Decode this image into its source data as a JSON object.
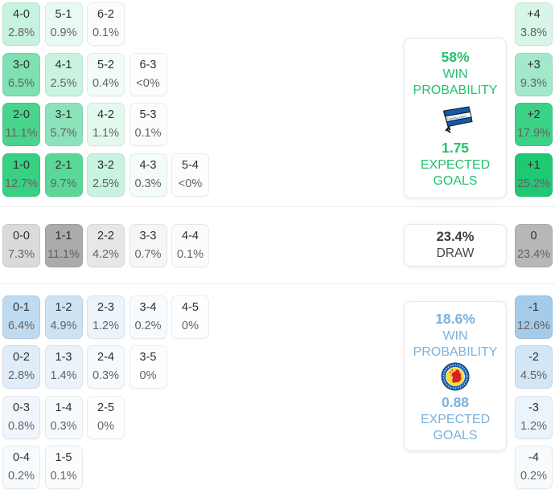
{
  "colors": {
    "home_accent": "#25c16d",
    "away_accent": "#7cb2d8",
    "draw_text": "#454545",
    "hertha_blue": "#0f5cab",
    "braunschweig_blue": "#1d63ad",
    "braunschweig_yellow": "#f8d832",
    "braunschweig_red": "#d42027"
  },
  "sections": {
    "home": {
      "panel": {
        "win_pct": "58%",
        "win_label": "WIN PROBABILITY",
        "team": "Hertha BSC",
        "xg": "1.75",
        "xg_label": "EXPECTED GOALS"
      },
      "rows": [
        [
          {
            "score": "4-0",
            "pct": "2.8%",
            "bg": "#c6f2e0"
          },
          {
            "score": "5-1",
            "pct": "0.9%",
            "bg": "#e9faf2"
          },
          {
            "score": "6-2",
            "pct": "0.1%",
            "bg": "#fafdfc"
          }
        ],
        [
          {
            "score": "3-0",
            "pct": "6.5%",
            "bg": "#7fe0b2"
          },
          {
            "score": "4-1",
            "pct": "2.5%",
            "bg": "#c9f3e1"
          },
          {
            "score": "5-2",
            "pct": "0.4%",
            "bg": "#f2fcf7"
          },
          {
            "score": "6-3",
            "pct": "<0%",
            "bg": "#fcfefd"
          }
        ],
        [
          {
            "score": "2-0",
            "pct": "11.1%",
            "bg": "#49d48e"
          },
          {
            "score": "3-1",
            "pct": "5.7%",
            "bg": "#8be3ba"
          },
          {
            "score": "4-2",
            "pct": "1.1%",
            "bg": "#e4f9ee"
          },
          {
            "score": "5-3",
            "pct": "0.1%",
            "bg": "#fafdfc"
          }
        ],
        [
          {
            "score": "1-0",
            "pct": "12.7%",
            "bg": "#38d083"
          },
          {
            "score": "2-1",
            "pct": "9.7%",
            "bg": "#5bd898"
          },
          {
            "score": "3-2",
            "pct": "2.5%",
            "bg": "#c9f3e1"
          },
          {
            "score": "4-3",
            "pct": "0.3%",
            "bg": "#f4fcf8"
          },
          {
            "score": "5-4",
            "pct": "<0%",
            "bg": "#fcfefd"
          }
        ]
      ],
      "diff": [
        {
          "score": "+4",
          "pct": "3.8%",
          "bg": "#d7f6e8"
        },
        {
          "score": "+3",
          "pct": "9.3%",
          "bg": "#a2e8cb"
        },
        {
          "score": "+2",
          "pct": "17.9%",
          "bg": "#3bd286"
        },
        {
          "score": "+1",
          "pct": "25.2%",
          "bg": "#1fc873"
        }
      ]
    },
    "draw": {
      "panel": {
        "pct": "23.4%",
        "label": "DRAW"
      },
      "rows": [
        [
          {
            "score": "0-0",
            "pct": "7.3%",
            "bg": "#dadada"
          },
          {
            "score": "1-1",
            "pct": "11.1%",
            "bg": "#ababab"
          },
          {
            "score": "2-2",
            "pct": "4.2%",
            "bg": "#e7e7e7"
          },
          {
            "score": "3-3",
            "pct": "0.7%",
            "bg": "#f6f6f6"
          },
          {
            "score": "4-4",
            "pct": "0.1%",
            "bg": "#fbfbfb"
          }
        ]
      ],
      "diff": [
        {
          "score": "0",
          "pct": "23.4%",
          "bg": "#b7b7b7"
        }
      ]
    },
    "away": {
      "panel": {
        "win_pct": "18.6%",
        "win_label": "WIN PROBABILITY",
        "team": "Eintracht Braunschweig",
        "xg": "0.88",
        "xg_label": "EXPECTED GOALS"
      },
      "rows": [
        [
          {
            "score": "0-1",
            "pct": "6.4%",
            "bg": "#bedbf1"
          },
          {
            "score": "1-2",
            "pct": "4.9%",
            "bg": "#cde3f4"
          },
          {
            "score": "2-3",
            "pct": "1.2%",
            "bg": "#ecf4fb"
          },
          {
            "score": "3-4",
            "pct": "0.2%",
            "bg": "#f8fbfe"
          },
          {
            "score": "4-5",
            "pct": "0%",
            "bg": "#fdfeff"
          }
        ],
        [
          {
            "score": "0-2",
            "pct": "2.8%",
            "bg": "#e0edf8"
          },
          {
            "score": "1-3",
            "pct": "1.4%",
            "bg": "#eaf3fa"
          },
          {
            "score": "2-4",
            "pct": "0.3%",
            "bg": "#f6fafd"
          },
          {
            "score": "3-5",
            "pct": "0%",
            "bg": "#fdfeff"
          }
        ],
        [
          {
            "score": "0-3",
            "pct": "0.8%",
            "bg": "#f0f6fc"
          },
          {
            "score": "1-4",
            "pct": "0.3%",
            "bg": "#f6fafd"
          },
          {
            "score": "2-5",
            "pct": "0%",
            "bg": "#fdfeff"
          }
        ],
        [
          {
            "score": "0-4",
            "pct": "0.2%",
            "bg": "#f8fbfe"
          },
          {
            "score": "1-5",
            "pct": "0.1%",
            "bg": "#fafcfe"
          }
        ]
      ],
      "diff": [
        {
          "score": "-1",
          "pct": "12.6%",
          "bg": "#a4cbea"
        },
        {
          "score": "-2",
          "pct": "4.5%",
          "bg": "#d3e6f5"
        },
        {
          "score": "-3",
          "pct": "1.2%",
          "bg": "#ecf4fb"
        },
        {
          "score": "-4",
          "pct": "0.2%",
          "bg": "#f8fbfe"
        }
      ]
    }
  },
  "chart_data": {
    "type": "heatmap",
    "description": "Football match scoreline probability matrix with goal-difference distribution",
    "home_team": "Hertha BSC",
    "away_team": "Eintracht Braunschweig",
    "home_win_probability_pct": 58,
    "draw_probability_pct": 23.4,
    "away_win_probability_pct": 18.6,
    "home_expected_goals": 1.75,
    "away_expected_goals": 0.88,
    "scoreline_probabilities": {
      "4-0": "2.8%",
      "5-1": "0.9%",
      "6-2": "0.1%",
      "3-0": "6.5%",
      "4-1": "2.5%",
      "5-2": "0.4%",
      "6-3": "<0%",
      "2-0": "11.1%",
      "3-1": "5.7%",
      "4-2": "1.1%",
      "5-3": "0.1%",
      "1-0": "12.7%",
      "2-1": "9.7%",
      "3-2": "2.5%",
      "4-3": "0.3%",
      "5-4": "<0%",
      "0-0": "7.3%",
      "1-1": "11.1%",
      "2-2": "4.2%",
      "3-3": "0.7%",
      "4-4": "0.1%",
      "0-1": "6.4%",
      "1-2": "4.9%",
      "2-3": "1.2%",
      "3-4": "0.2%",
      "4-5": "0%",
      "0-2": "2.8%",
      "1-3": "1.4%",
      "2-4": "0.3%",
      "3-5": "0%",
      "0-3": "0.8%",
      "1-4": "0.3%",
      "2-5": "0%",
      "0-4": "0.2%",
      "1-5": "0.1%"
    },
    "goal_difference_probabilities": {
      "+4": "3.8%",
      "+3": "9.3%",
      "+2": "17.9%",
      "+1": "25.2%",
      "0": "23.4%",
      "-1": "12.6%",
      "-2": "4.5%",
      "-3": "1.2%",
      "-4": "0.2%"
    }
  }
}
